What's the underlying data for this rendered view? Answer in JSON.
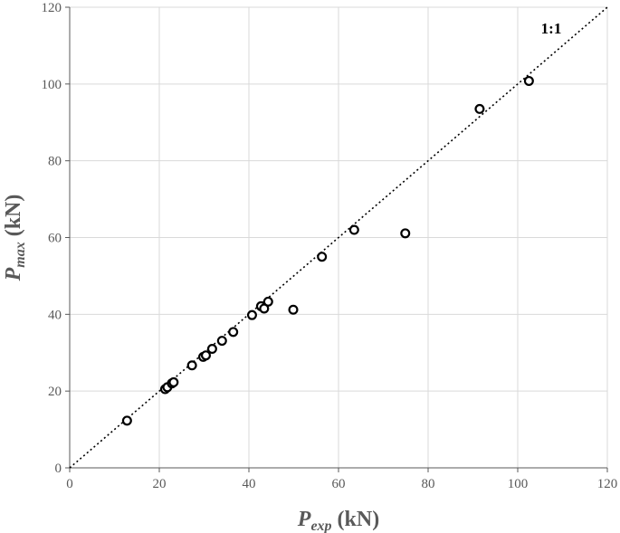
{
  "chart_data": {
    "type": "scatter",
    "title": "",
    "xlabel": {
      "main": "P",
      "sub": "exp",
      "unit": "(kN)"
    },
    "ylabel": {
      "main": "P",
      "sub": "max",
      "unit": "(kN)"
    },
    "xlim": [
      0,
      120
    ],
    "ylim": [
      0,
      120
    ],
    "xticks": [
      0,
      20,
      40,
      60,
      80,
      100,
      120
    ],
    "yticks": [
      0,
      20,
      40,
      60,
      80,
      100,
      120
    ],
    "grid": true,
    "reference_line": {
      "label": "1:1",
      "from": [
        0,
        0
      ],
      "to": [
        120,
        120
      ],
      "style": "dotted"
    },
    "series": [
      {
        "marker": "open-circle",
        "points": [
          [
            12.8,
            12.3
          ],
          [
            21.3,
            20.5
          ],
          [
            21.8,
            21.0
          ],
          [
            22.8,
            22.0
          ],
          [
            23.2,
            22.3
          ],
          [
            27.3,
            26.7
          ],
          [
            29.8,
            28.9
          ],
          [
            30.4,
            29.3
          ],
          [
            31.8,
            31.0
          ],
          [
            34.0,
            33.1
          ],
          [
            36.5,
            35.4
          ],
          [
            40.7,
            39.8
          ],
          [
            42.7,
            42.1
          ],
          [
            43.4,
            41.5
          ],
          [
            44.3,
            43.3
          ],
          [
            49.9,
            41.2
          ],
          [
            56.3,
            55.0
          ],
          [
            63.5,
            62.0
          ],
          [
            74.9,
            61.1
          ],
          [
            91.5,
            93.5
          ],
          [
            102.5,
            100.8
          ]
        ]
      }
    ]
  }
}
